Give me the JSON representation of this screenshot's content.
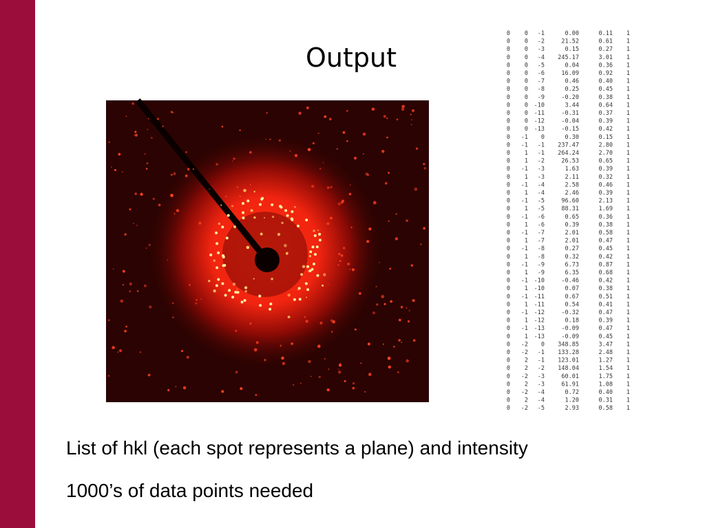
{
  "header": {
    "title": "Output"
  },
  "table": {
    "rows": [
      [
        "0",
        "0",
        "-1",
        "0.00",
        "0.11",
        "1"
      ],
      [
        "0",
        "0",
        "-2",
        "21.52",
        "0.61",
        "1"
      ],
      [
        "0",
        "0",
        "-3",
        "0.15",
        "0.27",
        "1"
      ],
      [
        "0",
        "0",
        "-4",
        "245.17",
        "3.01",
        "1"
      ],
      [
        "0",
        "0",
        "-5",
        "0.04",
        "0.36",
        "1"
      ],
      [
        "0",
        "0",
        "-6",
        "16.09",
        "0.92",
        "1"
      ],
      [
        "0",
        "0",
        "-7",
        "0.46",
        "0.40",
        "1"
      ],
      [
        "0",
        "0",
        "-8",
        "0.25",
        "0.45",
        "1"
      ],
      [
        "0",
        "0",
        "-9",
        "-0.20",
        "0.38",
        "1"
      ],
      [
        "0",
        "0",
        "-10",
        "3.44",
        "0.64",
        "1"
      ],
      [
        "0",
        "0",
        "-11",
        "-0.31",
        "0.37",
        "1"
      ],
      [
        "0",
        "0",
        "-12",
        "-0.04",
        "0.39",
        "1"
      ],
      [
        "0",
        "0",
        "-13",
        "-0.15",
        "0.42",
        "1"
      ],
      [
        "0",
        "-1",
        "0",
        "0.30",
        "0.15",
        "1"
      ],
      [
        "0",
        "-1",
        "-1",
        "237.47",
        "2.80",
        "1"
      ],
      [
        "0",
        "1",
        "-1",
        "264.24",
        "2.70",
        "1"
      ],
      [
        "0",
        "1",
        "-2",
        "26.53",
        "0.65",
        "1"
      ],
      [
        "0",
        "-1",
        "-3",
        "1.63",
        "0.39",
        "1"
      ],
      [
        "0",
        "1",
        "-3",
        "2.11",
        "0.32",
        "1"
      ],
      [
        "0",
        "-1",
        "-4",
        "2.58",
        "0.46",
        "1"
      ],
      [
        "0",
        "1",
        "-4",
        "2.46",
        "0.39",
        "1"
      ],
      [
        "0",
        "-1",
        "-5",
        "96.60",
        "2.13",
        "1"
      ],
      [
        "0",
        "1",
        "-5",
        "88.31",
        "1.69",
        "1"
      ],
      [
        "0",
        "-1",
        "-6",
        "0.65",
        "0.36",
        "1"
      ],
      [
        "0",
        "1",
        "-6",
        "0.39",
        "0.38",
        "1"
      ],
      [
        "0",
        "-1",
        "-7",
        "2.01",
        "0.58",
        "1"
      ],
      [
        "0",
        "1",
        "-7",
        "2.01",
        "0.47",
        "1"
      ],
      [
        "0",
        "-1",
        "-8",
        "0.27",
        "0.45",
        "1"
      ],
      [
        "0",
        "1",
        "-8",
        "0.32",
        "0.42",
        "1"
      ],
      [
        "0",
        "-1",
        "-9",
        "6.73",
        "0.87",
        "1"
      ],
      [
        "0",
        "1",
        "-9",
        "6.35",
        "0.68",
        "1"
      ],
      [
        "0",
        "-1",
        "-10",
        "-0.46",
        "0.42",
        "1"
      ],
      [
        "0",
        "1",
        "-10",
        "0.07",
        "0.38",
        "1"
      ],
      [
        "0",
        "-1",
        "-11",
        "0.67",
        "0.51",
        "1"
      ],
      [
        "0",
        "1",
        "-11",
        "0.54",
        "0.41",
        "1"
      ],
      [
        "0",
        "-1",
        "-12",
        "-0.32",
        "0.47",
        "1"
      ],
      [
        "0",
        "1",
        "-12",
        "0.18",
        "0.39",
        "1"
      ],
      [
        "0",
        "-1",
        "-13",
        "-0.09",
        "0.47",
        "1"
      ],
      [
        "0",
        "1",
        "-13",
        "-0.09",
        "0.45",
        "1"
      ],
      [
        "0",
        "-2",
        "0",
        "348.85",
        "3.47",
        "1"
      ],
      [
        "0",
        "-2",
        "-1",
        "133.28",
        "2.48",
        "1"
      ],
      [
        "0",
        "2",
        "-1",
        "123.01",
        "1.27",
        "1"
      ],
      [
        "0",
        "2",
        "-2",
        "148.04",
        "1.54",
        "1"
      ],
      [
        "0",
        "-2",
        "-3",
        "60.01",
        "1.75",
        "1"
      ],
      [
        "0",
        "2",
        "-3",
        "61.91",
        "1.08",
        "1"
      ],
      [
        "0",
        "-2",
        "-4",
        "0.72",
        "0.40",
        "1"
      ],
      [
        "0",
        "2",
        "-4",
        "1.20",
        "0.31",
        "1"
      ],
      [
        "0",
        "-2",
        "-5",
        "2.93",
        "0.58",
        "1"
      ]
    ]
  },
  "body": {
    "lines": [
      "List of hkl (each spot represents a plane) and intensity",
      "1000’s of data points needed"
    ]
  }
}
